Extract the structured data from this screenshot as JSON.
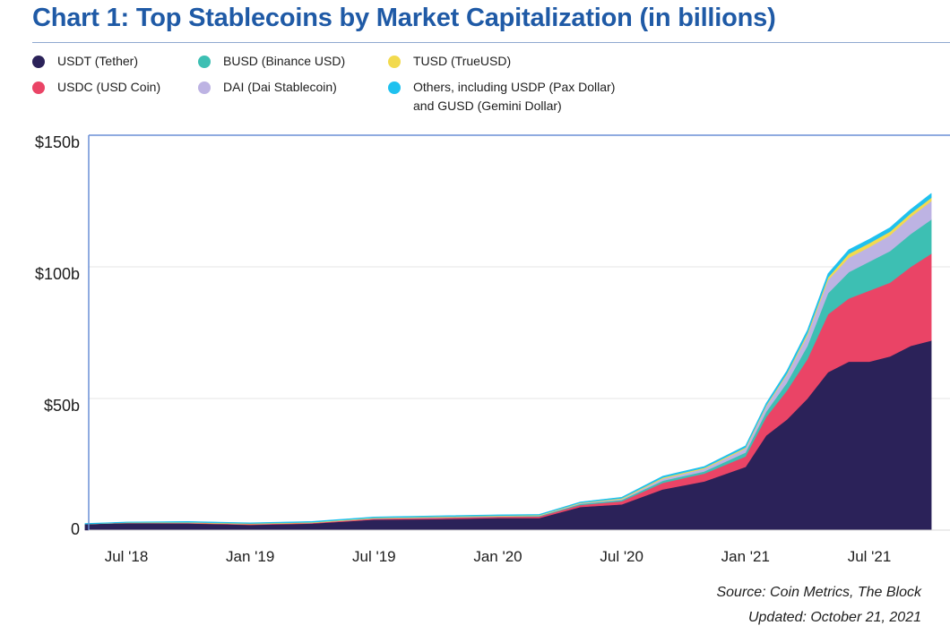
{
  "chart_data": {
    "type": "area",
    "stacked": true,
    "title": "Chart 1: Top Stablecoins by Market Capitalization (in billions)",
    "ylim": [
      0,
      150
    ],
    "y_ticks": [
      {
        "value": 0,
        "label": "0"
      },
      {
        "value": 50,
        "label": "$50b"
      },
      {
        "value": 100,
        "label": "$100b"
      },
      {
        "value": 150,
        "label": "$150b"
      }
    ],
    "x_ticks": [
      "Jul '18",
      "Jan '19",
      "Jul '19",
      "Jan '20",
      "Jul '20",
      "Jan '21",
      "Jul '21"
    ],
    "x": [
      "2018-05",
      "2018-07",
      "2018-10",
      "2019-01",
      "2019-04",
      "2019-07",
      "2019-10",
      "2020-01",
      "2020-03",
      "2020-05",
      "2020-07",
      "2020-09",
      "2020-11",
      "2021-01",
      "2021-02",
      "2021-03",
      "2021-04",
      "2021-05",
      "2021-06",
      "2021-07",
      "2021-08",
      "2021-09",
      "2021-10"
    ],
    "series": [
      {
        "name": "USDT (Tether)",
        "color": "#2b2259",
        "values": [
          2.3,
          2.7,
          2.6,
          2.0,
          2.5,
          4.0,
          4.2,
          4.6,
          4.6,
          8.8,
          9.8,
          15.5,
          18.5,
          24,
          36,
          42,
          50,
          60,
          64,
          64,
          66,
          70,
          72
        ]
      },
      {
        "name": "USDC (USD Coin)",
        "color": "#ea4466",
        "values": [
          0.0,
          0.1,
          0.2,
          0.3,
          0.3,
          0.4,
          0.5,
          0.5,
          0.6,
          0.8,
          1.2,
          2.5,
          3.0,
          4.0,
          7.0,
          11.0,
          15.0,
          22.0,
          24.0,
          27.0,
          28.0,
          30.0,
          33.0
        ]
      },
      {
        "name": "BUSD (Binance USD)",
        "color": "#3dbfb3",
        "values": [
          0.0,
          0.0,
          0.0,
          0.0,
          0.0,
          0.0,
          0.1,
          0.1,
          0.2,
          0.4,
          0.5,
          0.8,
          0.8,
          1.5,
          2.0,
          3.0,
          5.0,
          8.0,
          10.0,
          11.0,
          12.0,
          12.5,
          13.0
        ]
      },
      {
        "name": "DAI (Dai Stablecoin)",
        "color": "#bdb3e3",
        "values": [
          0.0,
          0.0,
          0.0,
          0.0,
          0.0,
          0.1,
          0.1,
          0.1,
          0.1,
          0.2,
          0.3,
          0.8,
          1.0,
          1.5,
          2.0,
          3.0,
          4.0,
          5.0,
          5.5,
          5.5,
          6.0,
          6.5,
          7.0
        ]
      },
      {
        "name": "TUSD (TrueUSD)",
        "color": "#f2da4e",
        "values": [
          0.0,
          0.1,
          0.2,
          0.2,
          0.2,
          0.2,
          0.2,
          0.2,
          0.2,
          0.2,
          0.3,
          0.4,
          0.4,
          0.4,
          0.4,
          0.5,
          0.8,
          1.0,
          1.5,
          1.5,
          1.4,
          1.3,
          1.3
        ]
      },
      {
        "name": "Others, including USDP (Pax Dollar)\nand GUSD (Gemini Dollar)",
        "color": "#1fc1ef",
        "values": [
          0.2,
          0.2,
          0.3,
          0.3,
          0.3,
          0.3,
          0.3,
          0.3,
          0.3,
          0.3,
          0.4,
          0.5,
          0.5,
          0.6,
          0.8,
          1.0,
          1.2,
          1.4,
          1.5,
          1.5,
          1.5,
          1.5,
          1.6
        ]
      }
    ]
  },
  "source_text": "Source:  Coin Metrics, The Block",
  "updated_text": "Updated: October 21, 2021",
  "colors": {
    "title": "#1f5aa6",
    "axis": "#6a8fd6",
    "grid": "#e6e6e6"
  }
}
